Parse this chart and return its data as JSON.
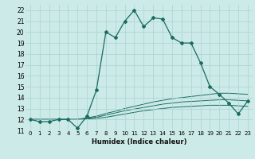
{
  "xlabel": "Humidex (Indice chaleur)",
  "bg_color": "#cceae7",
  "grid_color": "#aad4d0",
  "line_color": "#1a6b60",
  "xlim": [
    -0.5,
    23.5
  ],
  "ylim": [
    11.0,
    22.5
  ],
  "xtick_labels": [
    "0",
    "1",
    "2",
    "3",
    "4",
    "5",
    "6",
    "7",
    "8",
    "9",
    "10",
    "11",
    "12",
    "13",
    "14",
    "15",
    "16",
    "17",
    "18",
    "19",
    "20",
    "21",
    "22",
    "23"
  ],
  "ytick_labels": [
    "11",
    "12",
    "13",
    "14",
    "15",
    "16",
    "17",
    "18",
    "19",
    "20",
    "21",
    "22"
  ],
  "ytick_vals": [
    11,
    12,
    13,
    14,
    15,
    16,
    17,
    18,
    19,
    20,
    21,
    22
  ],
  "series_main": [
    12.0,
    11.8,
    11.8,
    12.0,
    12.0,
    11.2,
    12.3,
    14.7,
    20.0,
    19.5,
    21.0,
    22.0,
    20.5,
    21.3,
    21.2,
    19.5,
    19.0,
    19.0,
    17.2,
    15.0,
    14.3,
    13.5,
    12.5,
    13.7
  ],
  "series_lines": [
    [
      12.0,
      12.0,
      12.0,
      12.0,
      12.0,
      12.0,
      12.15,
      12.3,
      12.55,
      12.75,
      13.0,
      13.2,
      13.4,
      13.6,
      13.75,
      13.9,
      14.0,
      14.1,
      14.2,
      14.3,
      14.4,
      14.4,
      14.35,
      14.3
    ],
    [
      12.0,
      12.0,
      12.0,
      12.0,
      12.0,
      12.0,
      12.1,
      12.2,
      12.4,
      12.6,
      12.8,
      12.95,
      13.1,
      13.25,
      13.4,
      13.5,
      13.6,
      13.65,
      13.7,
      13.75,
      13.8,
      13.8,
      13.75,
      13.7
    ],
    [
      12.0,
      12.0,
      12.0,
      12.0,
      12.0,
      12.0,
      12.05,
      12.1,
      12.2,
      12.35,
      12.5,
      12.65,
      12.8,
      12.9,
      13.0,
      13.1,
      13.15,
      13.2,
      13.25,
      13.3,
      13.3,
      13.3,
      13.25,
      13.2
    ]
  ]
}
